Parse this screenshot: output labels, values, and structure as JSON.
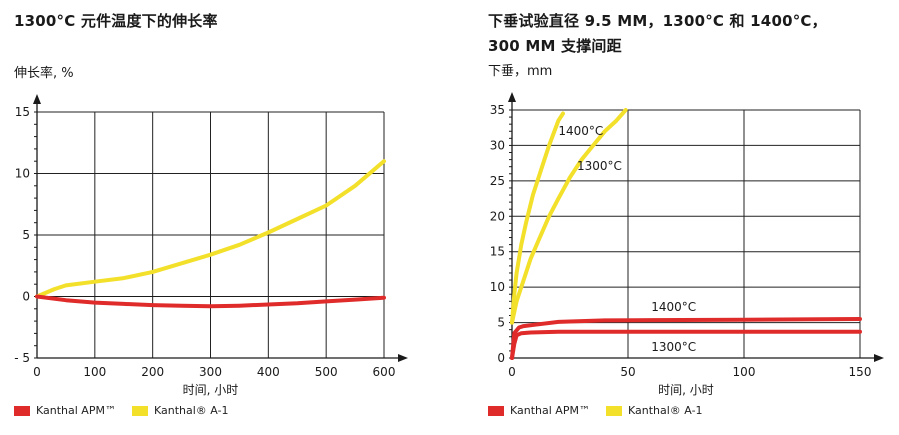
{
  "colors": {
    "red": "#e02b2b",
    "yellow": "#f3e02a",
    "axis": "#1a1a1a",
    "grid": "#222222"
  },
  "legend": {
    "red_label": "Kanthal APM™",
    "yellow_label": "Kanthal® A-1"
  },
  "chart_data": [
    {
      "type": "line",
      "title": "1300°C 元件温度下的伸长率",
      "ylabel": "伸长率, %",
      "xlabel": "时间, 小时",
      "xlim": [
        0,
        600
      ],
      "ylim": [
        -5,
        15
      ],
      "x_ticks": [
        "0",
        "100",
        "200",
        "300",
        "400",
        "500",
        "600"
      ],
      "y_ticks": [
        "- 5",
        "0",
        "5",
        "10",
        "15"
      ],
      "grid": true,
      "series": [
        {
          "name": "Kanthal® A-1",
          "color": "#f3e02a",
          "x": [
            0,
            30,
            50,
            100,
            150,
            200,
            250,
            300,
            350,
            400,
            450,
            500,
            550,
            600
          ],
          "y": [
            0,
            0.6,
            0.9,
            1.2,
            1.5,
            2.0,
            2.7,
            3.4,
            4.2,
            5.2,
            6.3,
            7.4,
            9.0,
            11.0
          ]
        },
        {
          "name": "Kanthal APM™",
          "color": "#e02b2b",
          "x": [
            0,
            50,
            100,
            150,
            200,
            250,
            300,
            350,
            400,
            450,
            500,
            550,
            600
          ],
          "y": [
            0,
            -0.3,
            -0.5,
            -0.6,
            -0.7,
            -0.75,
            -0.8,
            -0.75,
            -0.65,
            -0.55,
            -0.4,
            -0.25,
            -0.1
          ]
        }
      ]
    },
    {
      "type": "line",
      "title": "下垂试验直径 9.5 MM，1300°C 和 1400°C，",
      "title2": "300 MM 支撑间距",
      "ylabel": "下垂，mm",
      "xlabel": "时间, 小时",
      "xlim": [
        0,
        150
      ],
      "ylim": [
        0,
        35
      ],
      "x_ticks": [
        "0",
        "50",
        "100",
        "150"
      ],
      "y_ticks": [
        "0",
        "5",
        "10",
        "15",
        "20",
        "25",
        "30",
        "35"
      ],
      "grid": true,
      "annotations": [
        "1400°C",
        "1300°C",
        "1400°C",
        "1300°C"
      ],
      "series": [
        {
          "name": "Kanthal® A-1 1400°C",
          "color": "#f3e02a",
          "x": [
            0,
            1,
            2,
            4,
            6,
            9,
            12,
            16,
            20,
            22
          ],
          "y": [
            5,
            9,
            12,
            16,
            19,
            23,
            26,
            30,
            33.5,
            34.5
          ]
        },
        {
          "name": "Kanthal® A-1 1300°C",
          "color": "#f3e02a",
          "x": [
            0,
            2,
            5,
            8,
            12,
            16,
            20,
            25,
            30,
            35,
            40,
            45,
            49
          ],
          "y": [
            5,
            8,
            11,
            14,
            17,
            20,
            22.5,
            25.5,
            28,
            30,
            32,
            33.5,
            35
          ]
        },
        {
          "name": "Kanthal APM™ 1400°C",
          "color": "#e02b2b",
          "x": [
            0,
            1,
            3,
            5,
            10,
            20,
            40,
            60,
            100,
            150
          ],
          "y": [
            0,
            3.5,
            4.3,
            4.5,
            4.7,
            5.1,
            5.3,
            5.35,
            5.4,
            5.5
          ]
        },
        {
          "name": "Kanthal APM™ 1300°C",
          "color": "#e02b2b",
          "x": [
            0,
            1,
            2,
            4,
            8,
            20,
            50,
            100,
            150
          ],
          "y": [
            0,
            2.0,
            3.2,
            3.5,
            3.6,
            3.7,
            3.7,
            3.7,
            3.7
          ]
        }
      ]
    }
  ]
}
